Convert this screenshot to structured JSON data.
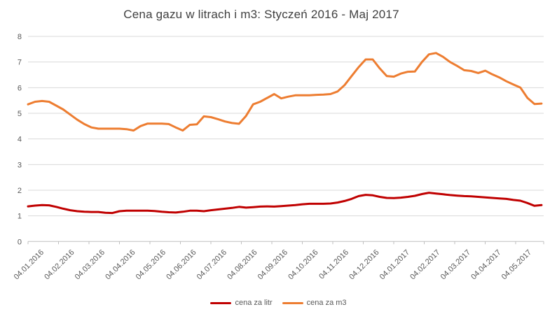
{
  "chart_data": {
    "type": "line",
    "title": "Cena gazu w litrach i m3: Styczeń 2016 - Maj 2017",
    "x_tick_labels": [
      "04.01.2016",
      "04.02.2016",
      "04.03.2016",
      "04.04.2016",
      "04.05.2016",
      "04.06.2016",
      "04.07.2016",
      "04.08.2016",
      "04.09.2016",
      "04.10.2016",
      "04.11.2016",
      "04.12.2016",
      "04.01.2017",
      "04.02.2017",
      "04.03.2017",
      "04.04.2017",
      "04.05.2017"
    ],
    "y_ticks": [
      0,
      1,
      2,
      3,
      4,
      5,
      6,
      7,
      8
    ],
    "ylim": [
      0,
      8
    ],
    "x_description": "74 weekly data points from 04.01.2016 to 29.05.2017",
    "grid": "horizontal",
    "legend_position": "bottom",
    "series": [
      {
        "name": "cena za litr",
        "color": "#C00000",
        "values": [
          1.37,
          1.4,
          1.42,
          1.41,
          1.35,
          1.28,
          1.22,
          1.18,
          1.16,
          1.15,
          1.15,
          1.12,
          1.11,
          1.18,
          1.2,
          1.2,
          1.2,
          1.2,
          1.19,
          1.16,
          1.14,
          1.13,
          1.16,
          1.2,
          1.2,
          1.18,
          1.22,
          1.25,
          1.28,
          1.31,
          1.35,
          1.32,
          1.34,
          1.36,
          1.37,
          1.36,
          1.38,
          1.4,
          1.42,
          1.45,
          1.47,
          1.47,
          1.47,
          1.48,
          1.52,
          1.58,
          1.66,
          1.77,
          1.82,
          1.8,
          1.74,
          1.7,
          1.69,
          1.71,
          1.74,
          1.78,
          1.85,
          1.9,
          1.87,
          1.84,
          1.81,
          1.79,
          1.77,
          1.76,
          1.74,
          1.72,
          1.7,
          1.68,
          1.66,
          1.62,
          1.59,
          1.5,
          1.39,
          1.42
        ]
      },
      {
        "name": "cena za m3",
        "color": "#ED7D31",
        "values": [
          5.35,
          5.45,
          5.48,
          5.45,
          5.3,
          5.15,
          4.95,
          4.75,
          4.58,
          4.45,
          4.4,
          4.4,
          4.4,
          4.4,
          4.38,
          4.33,
          4.5,
          4.6,
          4.6,
          4.6,
          4.58,
          4.45,
          4.33,
          4.55,
          4.57,
          4.88,
          4.85,
          4.77,
          4.68,
          4.62,
          4.59,
          4.9,
          5.35,
          5.45,
          5.6,
          5.75,
          5.58,
          5.65,
          5.7,
          5.7,
          5.7,
          5.72,
          5.73,
          5.75,
          5.85,
          6.1,
          6.45,
          6.8,
          7.1,
          7.1,
          6.75,
          6.45,
          6.43,
          6.55,
          6.62,
          6.63,
          7.0,
          7.3,
          7.35,
          7.2,
          7.0,
          6.85,
          6.68,
          6.65,
          6.57,
          6.66,
          6.52,
          6.4,
          6.25,
          6.12,
          6.0,
          5.6,
          5.36,
          5.38
        ]
      }
    ],
    "gridline_color": "#D9D9D9",
    "axis_color": "#BFBFBF",
    "tick_label_color": "#595959",
    "title_color": "#404040"
  }
}
